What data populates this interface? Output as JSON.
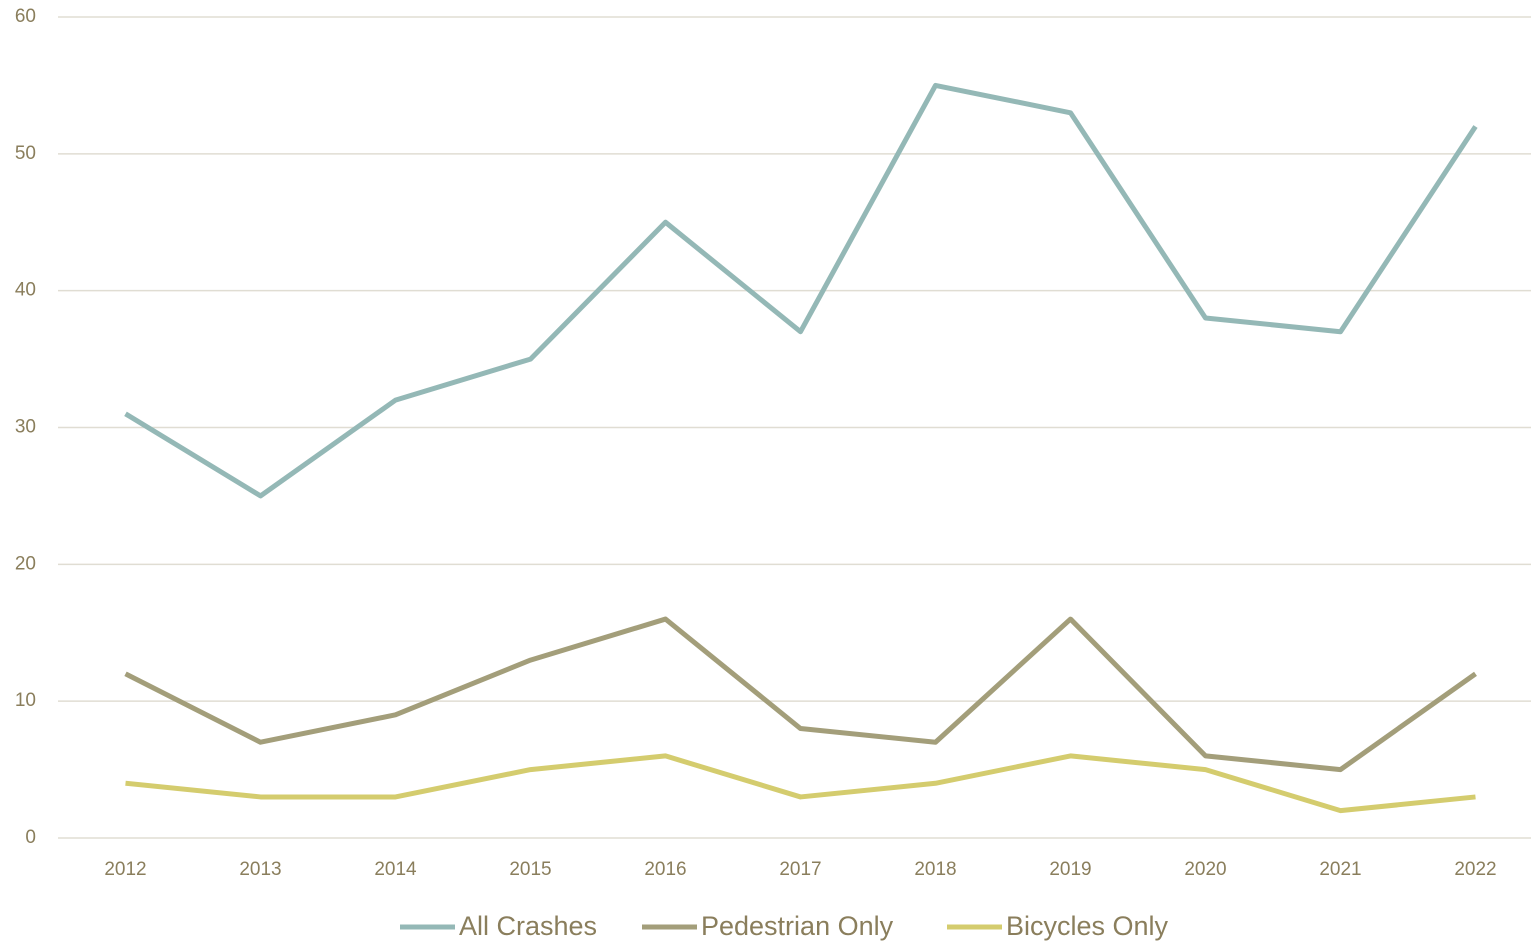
{
  "chart_data": {
    "type": "line",
    "categories": [
      "2012",
      "2013",
      "2014",
      "2015",
      "2016",
      "2017",
      "2018",
      "2019",
      "2020",
      "2021",
      "2022"
    ],
    "series": [
      {
        "name": "All Crashes",
        "color": "#94b8b6",
        "values": [
          31,
          25,
          32,
          35,
          45,
          37,
          55,
          53,
          38,
          37,
          52
        ]
      },
      {
        "name": "Pedestrian Only",
        "color": "#a39e7a",
        "values": [
          12,
          7,
          9,
          13,
          16,
          8,
          7,
          16,
          6,
          5,
          12
        ]
      },
      {
        "name": "Bicycles Only",
        "color": "#d4cc6e",
        "values": [
          4,
          3,
          3,
          5,
          6,
          3,
          4,
          6,
          5,
          2,
          3
        ]
      }
    ],
    "ylim": [
      0,
      60
    ],
    "yticks": [
      0,
      10,
      20,
      30,
      40,
      50,
      60
    ],
    "grid": true,
    "legend": "bottom"
  }
}
